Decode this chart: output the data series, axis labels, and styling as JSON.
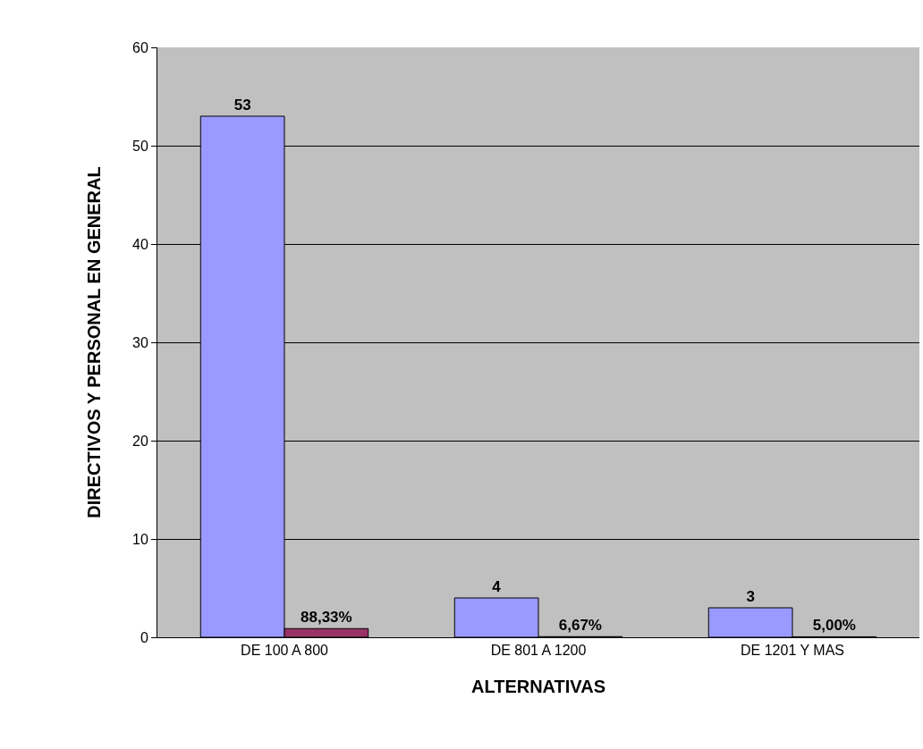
{
  "chart_data": {
    "type": "bar",
    "xlabel": "ALTERNATIVAS",
    "ylabel": "DIRECTIVOS Y PERSONAL EN GENERAL",
    "categories": [
      "DE 100 A 800",
      "DE 801 A 1200",
      "DE 1201 Y MAS"
    ],
    "series": [
      {
        "color": "#9999ff",
        "values": [
          53,
          4,
          3
        ],
        "value_labels": [
          "53",
          "4",
          "3"
        ]
      },
      {
        "color": "#993366",
        "values": [
          0.8833,
          0.0667,
          0.05
        ],
        "value_labels": [
          "88,33%",
          "6,67%",
          "5,00%"
        ]
      }
    ],
    "ylim": [
      0,
      60
    ],
    "yticks": [
      0,
      10,
      20,
      30,
      40,
      50,
      60
    ],
    "grid": "y"
  }
}
